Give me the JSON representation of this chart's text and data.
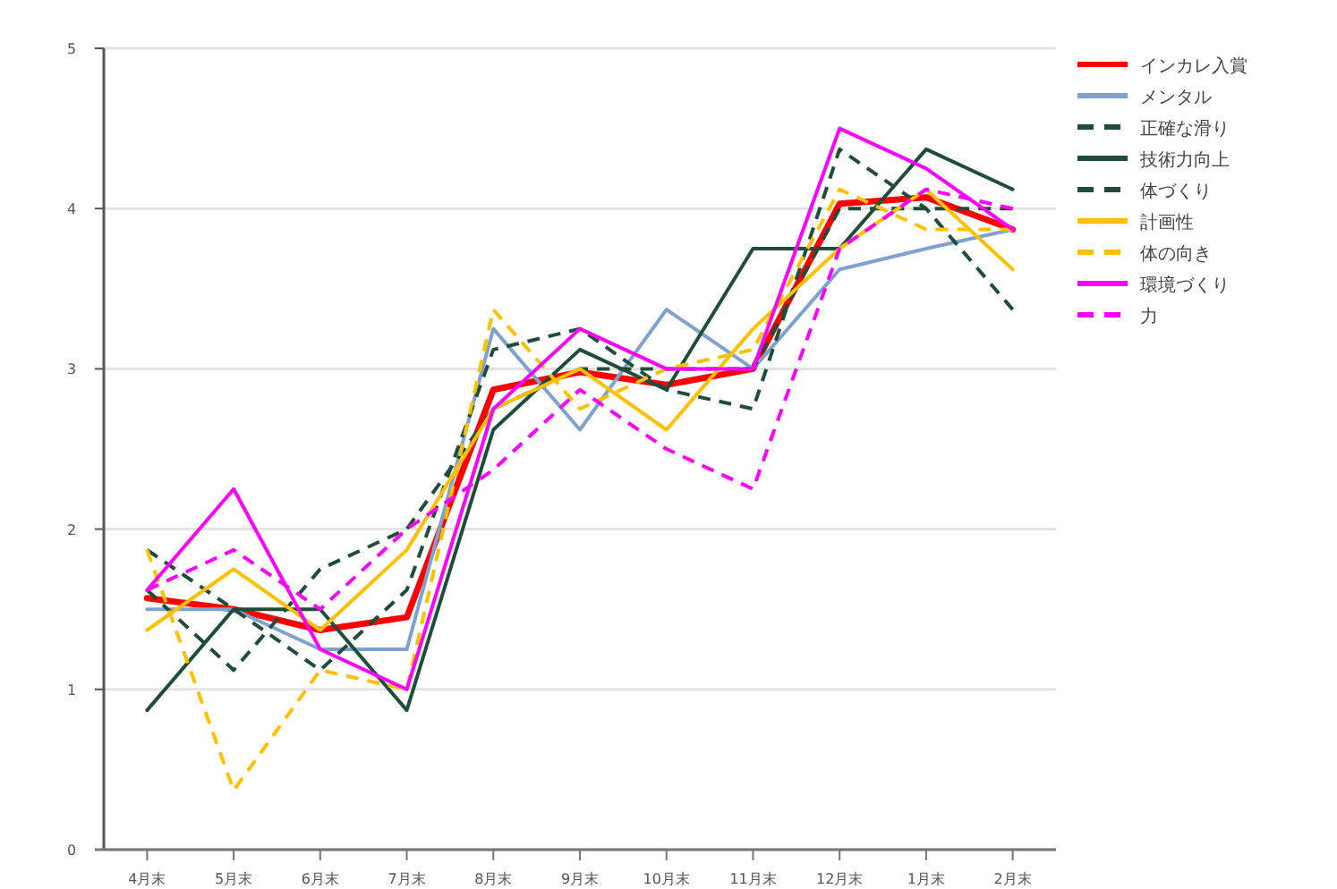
{
  "chart_data": {
    "type": "line",
    "categories": [
      "4月末",
      "5月末",
      "6月末",
      "7月末",
      "8月末",
      "9月末",
      "10月末",
      "11月末",
      "12月末",
      "1月末",
      "2月末"
    ],
    "ylim": [
      0,
      5
    ],
    "yticks": [
      0,
      1,
      2,
      3,
      4,
      5
    ],
    "grid": "y",
    "legend": "top right",
    "marker": "none",
    "series": [
      {
        "name": "インカレ入賞",
        "color": "#ff0000",
        "line_style": "solid",
        "values": [
          1.57,
          1.5,
          1.37,
          1.45,
          2.87,
          2.98,
          2.9,
          3.0,
          4.03,
          4.07,
          3.87
        ]
      },
      {
        "name": "メンタル",
        "color": "#7ea1d0",
        "line_style": "solid",
        "values": [
          1.5,
          1.5,
          1.25,
          1.25,
          3.25,
          2.62,
          3.37,
          3.0,
          3.62,
          3.75,
          3.87
        ]
      },
      {
        "name": "正確な滑り",
        "color": "#1e4d3a",
        "line_style": "dashed",
        "values": [
          1.87,
          1.5,
          1.12,
          1.62,
          3.12,
          3.25,
          2.87,
          2.75,
          4.37,
          4.0,
          3.37
        ]
      },
      {
        "name": "技術力向上",
        "color": "#1e4d3a",
        "line_style": "solid",
        "values": [
          0.87,
          1.5,
          1.5,
          0.87,
          2.62,
          3.12,
          2.87,
          3.75,
          3.75,
          4.37,
          4.12
        ]
      },
      {
        "name": "体づくり",
        "color": "#1e4d3a",
        "line_style": "dashed",
        "values": [
          1.62,
          1.12,
          1.75,
          2.0,
          2.75,
          3.0,
          3.0,
          3.0,
          4.0,
          4.0,
          4.0
        ]
      },
      {
        "name": "計画性",
        "color": "#ffc000",
        "line_style": "solid",
        "values": [
          1.37,
          1.75,
          1.37,
          1.87,
          2.75,
          3.0,
          2.62,
          3.25,
          3.75,
          4.12,
          3.62
        ]
      },
      {
        "name": "体の向き",
        "color": "#ffc000",
        "line_style": "dashed",
        "values": [
          1.87,
          0.37,
          1.12,
          1.0,
          3.37,
          2.75,
          3.0,
          3.12,
          4.12,
          3.87,
          3.87
        ]
      },
      {
        "name": "環境づくり",
        "color": "#ff00ff",
        "line_style": "solid",
        "values": [
          1.62,
          2.25,
          1.25,
          1.0,
          2.75,
          3.25,
          3.0,
          3.0,
          4.5,
          4.25,
          3.87
        ]
      },
      {
        "name": "力",
        "color": "#ff00ff",
        "line_style": "dashed",
        "values": [
          1.62,
          1.87,
          1.5,
          2.0,
          2.37,
          2.87,
          2.5,
          2.25,
          3.75,
          4.12,
          4.0
        ]
      }
    ]
  }
}
